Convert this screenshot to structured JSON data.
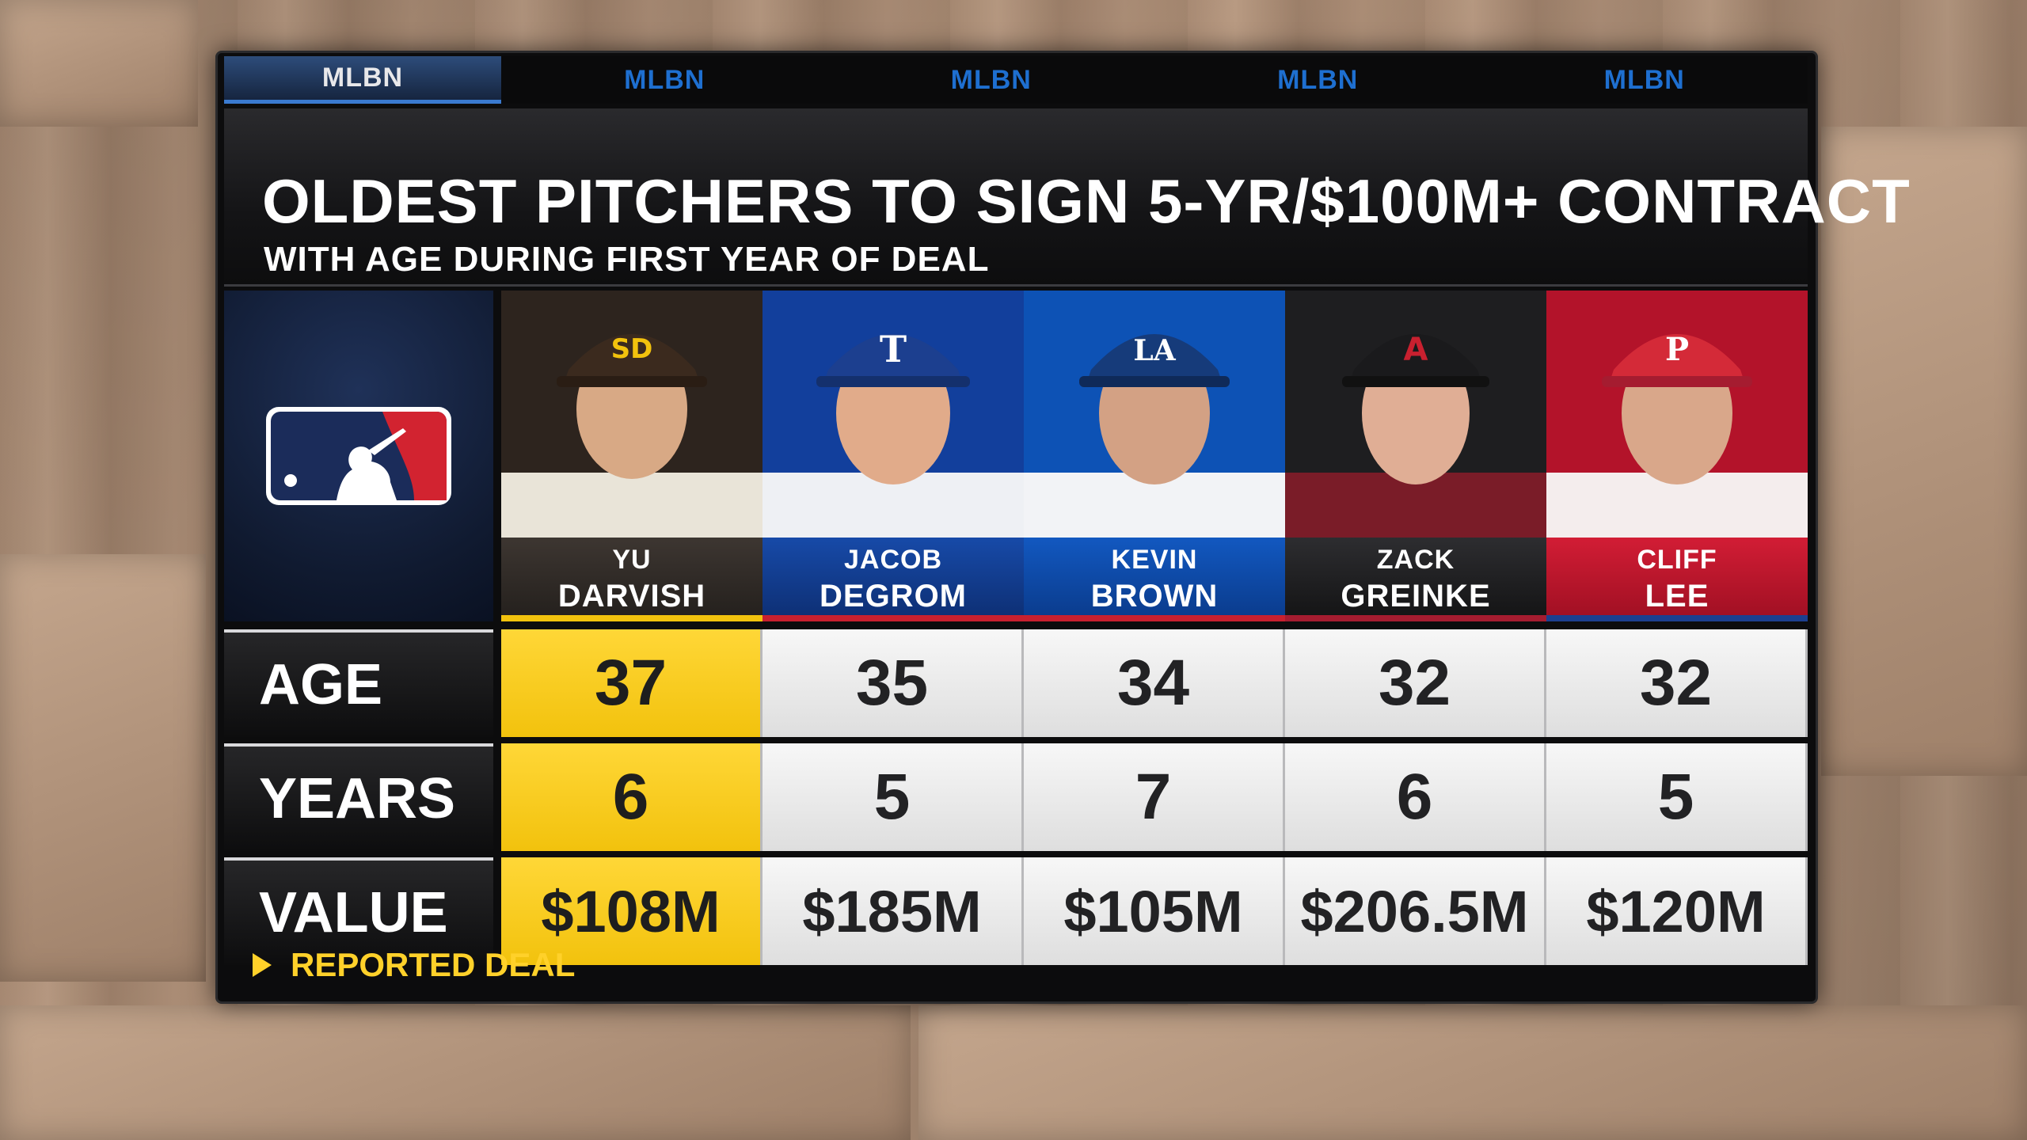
{
  "tabs": [
    "MLBN",
    "MLBN",
    "MLBN",
    "MLBN",
    "MLBN"
  ],
  "title": "OLDEST PITCHERS TO SIGN 5-YR/$100M+ CONTRACT",
  "subtitle": "WITH AGE DURING FIRST YEAR OF DEAL",
  "logo": "mlb-logo",
  "row_labels": {
    "age": "AGE",
    "years": "YEARS",
    "value": "VALUE"
  },
  "players": [
    {
      "first": "YU",
      "last": "DARVISH",
      "team_color": "#3b2e26",
      "cap_color": "#3b2a1e",
      "cap_logo": "SD",
      "age": "37",
      "years": "6",
      "value": "$108M",
      "highlight": true
    },
    {
      "first": "JACOB",
      "last": "DEGROM",
      "team_color": "#0d3a93",
      "cap_color": "#1c3f8f",
      "cap_logo": "T",
      "age": "35",
      "years": "5",
      "value": "$185M",
      "highlight": false
    },
    {
      "first": "KEVIN",
      "last": "BROWN",
      "team_color": "#0a4aa8",
      "cap_color": "#163b7a",
      "cap_logo": "LA",
      "age": "34",
      "years": "7",
      "value": "$105M",
      "highlight": false
    },
    {
      "first": "ZACK",
      "last": "GREINKE",
      "team_color": "#1b1b1d",
      "cap_color": "#1a1a1c",
      "cap_logo": "A",
      "age": "32",
      "years": "6",
      "value": "$206.5M",
      "highlight": false
    },
    {
      "first": "CLIFF",
      "last": "LEE",
      "team_color": "#b3132a",
      "cap_color": "#c8202f",
      "cap_logo": "P",
      "age": "32",
      "years": "5",
      "value": "$120M",
      "highlight": false
    }
  ],
  "note": "REPORTED DEAL",
  "colors": {
    "highlight": "#f5c518",
    "note": "#ffd12a",
    "mlbn_blue": "#1e6fd0"
  }
}
